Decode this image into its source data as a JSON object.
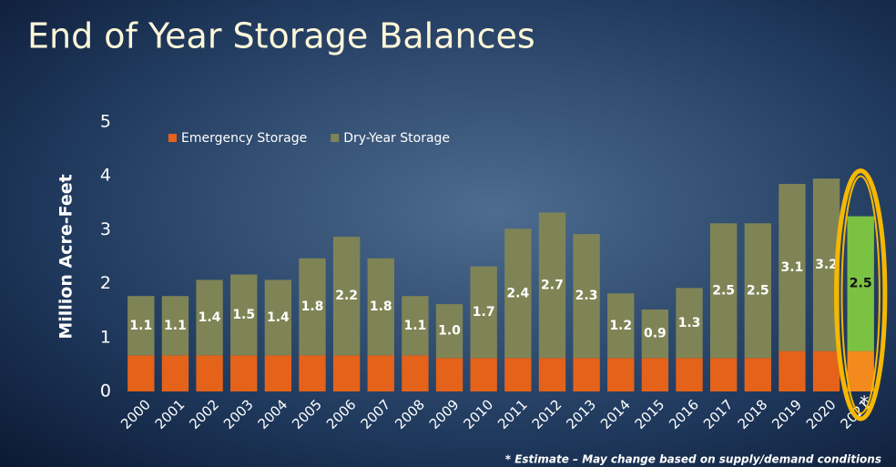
{
  "chart_data": {
    "type": "stacked_bar",
    "title": "End of Year Storage Balances",
    "y_label": "Million Acre-Feet",
    "categories": [
      "2000",
      "2001",
      "2002",
      "2003",
      "2004",
      "2005",
      "2006",
      "2007",
      "2008",
      "2009",
      "2010",
      "2011",
      "2012",
      "2013",
      "2014",
      "2015",
      "2016",
      "2017",
      "2018",
      "2019",
      "2020",
      "2021"
    ],
    "series": [
      {
        "name": "Emergency Storage",
        "color": "#e5621b",
        "highlight_color": "#f28a1e",
        "values": [
          0.67,
          0.67,
          0.67,
          0.67,
          0.67,
          0.67,
          0.67,
          0.67,
          0.67,
          0.62,
          0.62,
          0.62,
          0.62,
          0.62,
          0.62,
          0.62,
          0.62,
          0.62,
          0.62,
          0.75,
          0.75,
          0.75
        ]
      },
      {
        "name": "Dry-Year Storage",
        "color": "#7f8456",
        "highlight_color": "#7cc242",
        "values": [
          1.1,
          1.1,
          1.4,
          1.5,
          1.4,
          1.8,
          2.2,
          1.8,
          1.1,
          1.0,
          1.7,
          2.4,
          2.7,
          2.3,
          1.2,
          0.9,
          1.3,
          2.5,
          2.5,
          3.1,
          3.2,
          2.5
        ],
        "value_labels": [
          "1.1",
          "1.1",
          "1.4",
          "1.5",
          "1.4",
          "1.8",
          "2.2",
          "1.8",
          "1.1",
          "1.0",
          "1.7",
          "2.4",
          "2.7",
          "2.3",
          "1.2",
          "0.9",
          "1.3",
          "2.5",
          "2.5",
          "3.1",
          "3.2",
          "2.5"
        ]
      }
    ],
    "highlight": "2021",
    "highlight_mark": "*",
    "footnote": "* Estimate – May change based on supply/demand conditions",
    "ylim": [
      0,
      5
    ],
    "yticks": [
      0,
      1,
      2,
      3,
      4,
      5
    ],
    "legend": "top-left"
  }
}
